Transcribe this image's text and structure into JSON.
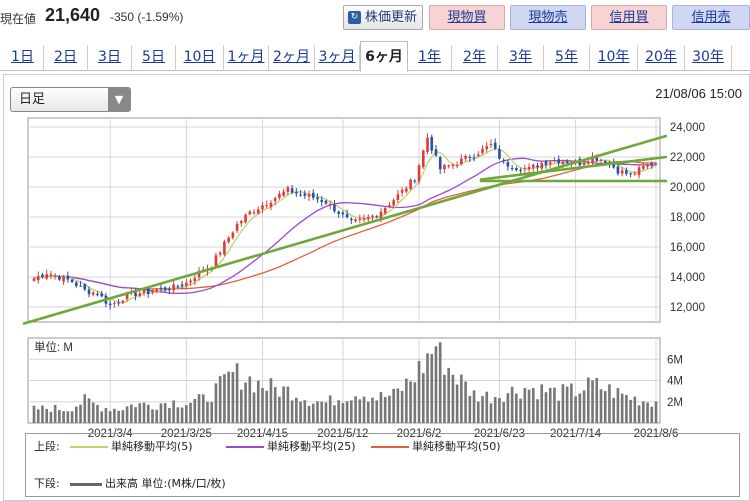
{
  "header": {
    "price_label": "現在値",
    "price": "21,640",
    "change": "-350 (-1.59%)",
    "buttons": {
      "refresh": "株価更新",
      "buy": "現物買",
      "sell": "現物売",
      "margin_buy": "信用買",
      "margin_sell": "信用売"
    }
  },
  "tabs": [
    {
      "label": "1日"
    },
    {
      "label": "2日"
    },
    {
      "label": "3日"
    },
    {
      "label": "5日"
    },
    {
      "label": "10日"
    },
    {
      "label": "1ヶ月"
    },
    {
      "label": "2ヶ月"
    },
    {
      "label": "3ヶ月"
    },
    {
      "label": "6ヶ月"
    },
    {
      "label": "1年"
    },
    {
      "label": "2年"
    },
    {
      "label": "3年"
    },
    {
      "label": "5年"
    },
    {
      "label": "10年"
    },
    {
      "label": "20年"
    },
    {
      "label": "30年"
    }
  ],
  "active_tab": "6ヶ月",
  "controls": {
    "period_select": "日足",
    "timestamp": "21/08/06 15:00"
  },
  "legend": {
    "upper_label": "上段:",
    "lower_label": "下段:",
    "ma5": "単純移動平均(5)",
    "ma25": "単純移動平均(25)",
    "ma50": "単純移動平均(50)",
    "volume": "出来高 単位:(M株/口/枚)"
  },
  "colors": {
    "up": "#e03a3a",
    "down": "#2a4fa8",
    "ma5": "#b8d96a",
    "ma25": "#9b4bd1",
    "ma50": "#e0603a",
    "trend": "#6ea83a",
    "volume": "#777777"
  },
  "chart_data": [
    {
      "type": "candlestick",
      "x_ticks": [
        "2021/3/4",
        "2021/3/25",
        "2021/4/15",
        "2021/5/12",
        "2021/6/2",
        "2021/6/23",
        "2021/7/14",
        "2021/8/6"
      ],
      "y_ticks": [
        "12,000",
        "14,000",
        "16,000",
        "18,000",
        "20,000",
        "22,000",
        "24,000"
      ],
      "ylim": [
        11000,
        24600
      ],
      "close_anchors": [
        [
          0,
          13900
        ],
        [
          3,
          14300
        ],
        [
          6,
          14000
        ],
        [
          9,
          13700
        ],
        [
          12,
          13100
        ],
        [
          15,
          12900
        ],
        [
          18,
          12100
        ],
        [
          21,
          12600
        ],
        [
          24,
          12900
        ],
        [
          27,
          13000
        ],
        [
          30,
          13200
        ],
        [
          33,
          13300
        ],
        [
          36,
          13600
        ],
        [
          39,
          14300
        ],
        [
          42,
          14800
        ],
        [
          45,
          16200
        ],
        [
          48,
          17500
        ],
        [
          51,
          18300
        ],
        [
          54,
          18800
        ],
        [
          57,
          19300
        ],
        [
          60,
          19800
        ],
        [
          63,
          19500
        ],
        [
          66,
          19300
        ],
        [
          69,
          19000
        ],
        [
          72,
          18300
        ],
        [
          75,
          17600
        ],
        [
          78,
          17800
        ],
        [
          81,
          18200
        ],
        [
          84,
          18900
        ],
        [
          87,
          19700
        ],
        [
          90,
          20600
        ],
        [
          93,
          23300
        ],
        [
          96,
          21200
        ],
        [
          99,
          21500
        ],
        [
          102,
          21900
        ],
        [
          105,
          22300
        ],
        [
          108,
          22800
        ],
        [
          111,
          21600
        ],
        [
          114,
          21300
        ],
        [
          117,
          21200
        ],
        [
          120,
          21600
        ],
        [
          123,
          21800
        ],
        [
          126,
          21700
        ],
        [
          129,
          21600
        ],
        [
          132,
          22000
        ],
        [
          135,
          21800
        ],
        [
          138,
          21100
        ],
        [
          141,
          20800
        ],
        [
          144,
          21300
        ],
        [
          147,
          21640
        ]
      ],
      "trendlines": [
        {
          "from": [
            0,
            10900
          ],
          "to": [
            147,
            23400
          ]
        },
        {
          "from": [
            108,
            20400
          ],
          "to": [
            147,
            20400
          ]
        },
        {
          "from": [
            108,
            20500
          ],
          "to": [
            147,
            22000
          ]
        }
      ]
    },
    {
      "type": "bar",
      "name": "出来高",
      "unit_label": "単位: M",
      "y_ticks": [
        "2M",
        "4M",
        "6M"
      ],
      "ylim": [
        0,
        8
      ],
      "volume_anchors": [
        [
          0,
          1.3
        ],
        [
          4,
          1.4
        ],
        [
          8,
          1.3
        ],
        [
          12,
          2.1
        ],
        [
          16,
          1.5
        ],
        [
          20,
          1.3
        ],
        [
          24,
          1.8
        ],
        [
          28,
          1.7
        ],
        [
          32,
          2.0
        ],
        [
          36,
          1.9
        ],
        [
          40,
          2.2
        ],
        [
          44,
          3.4
        ],
        [
          47,
          4.6
        ],
        [
          50,
          4.3
        ],
        [
          53,
          3.7
        ],
        [
          57,
          3.2
        ],
        [
          61,
          3.0
        ],
        [
          65,
          2.2
        ],
        [
          69,
          1.9
        ],
        [
          73,
          2.5
        ],
        [
          77,
          2.9
        ],
        [
          81,
          2.4
        ],
        [
          85,
          2.6
        ],
        [
          89,
          4.0
        ],
        [
          92,
          5.5
        ],
        [
          95,
          7.4
        ],
        [
          98,
          5.2
        ],
        [
          101,
          3.9
        ],
        [
          104,
          2.7
        ],
        [
          108,
          2.5
        ],
        [
          112,
          2.9
        ],
        [
          116,
          3.3
        ],
        [
          120,
          3.1
        ],
        [
          124,
          2.8
        ],
        [
          128,
          3.0
        ],
        [
          132,
          3.6
        ],
        [
          136,
          3.1
        ],
        [
          140,
          2.5
        ],
        [
          144,
          2.1
        ],
        [
          147,
          2.0
        ]
      ]
    }
  ]
}
